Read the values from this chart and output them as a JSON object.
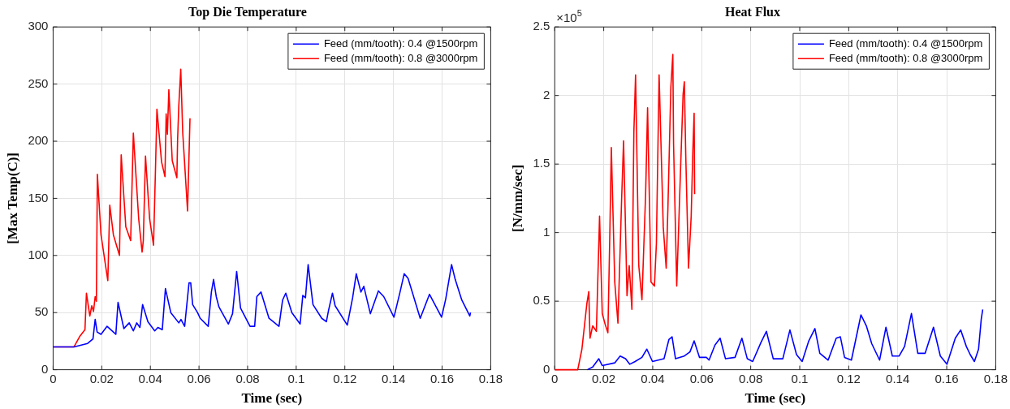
{
  "chart_data": [
    {
      "type": "line",
      "title": "Top Die Temperature",
      "xlabel": "Time (sec)",
      "ylabel": "[Max Temp(C)]",
      "xlim": [
        0,
        0.18
      ],
      "xticks": [
        0,
        0.02,
        0.04,
        0.06,
        0.08,
        0.1,
        0.12,
        0.14,
        0.16,
        0.18
      ],
      "ylim": [
        0,
        300
      ],
      "yticks": [
        0,
        50,
        100,
        150,
        200,
        250,
        300
      ],
      "grid": true,
      "legend": "top right",
      "series": [
        {
          "name": "Feed (mm/tooth): 0.4 @1500rpm",
          "color": "#0000ff",
          "x": [
            0,
            0.0086,
            0.0142,
            0.0164,
            0.0173,
            0.0181,
            0.0197,
            0.0222,
            0.0258,
            0.0267,
            0.0291,
            0.0313,
            0.033,
            0.0344,
            0.0357,
            0.0368,
            0.039,
            0.0418,
            0.0431,
            0.0449,
            0.0462,
            0.0484,
            0.0517,
            0.0526,
            0.0541,
            0.0559,
            0.0566,
            0.0574,
            0.0594,
            0.0605,
            0.0638,
            0.0651,
            0.066,
            0.0671,
            0.0682,
            0.0721,
            0.0738,
            0.0755,
            0.0771,
            0.081,
            0.0829,
            0.0838,
            0.0855,
            0.0888,
            0.0929,
            0.0944,
            0.0957,
            0.0982,
            0.1016,
            0.1027,
            0.1038,
            0.1049,
            0.1069,
            0.1105,
            0.1124,
            0.1133,
            0.1149,
            0.116,
            0.121,
            0.1232,
            0.1247,
            0.1266,
            0.1278,
            0.1305,
            0.1338,
            0.136,
            0.1402,
            0.1427,
            0.1444,
            0.146,
            0.151,
            0.1548,
            0.1598,
            0.1615,
            0.1639,
            0.1654,
            0.1681,
            0.1714,
            0.1717
          ],
          "values": [
            20,
            20,
            23,
            27,
            44,
            33,
            31,
            38,
            31,
            59,
            36,
            41,
            34,
            41,
            37,
            57,
            42,
            34,
            37,
            35,
            71,
            50,
            41,
            44,
            38,
            76,
            76,
            57,
            50,
            45,
            38,
            68,
            79,
            64,
            55,
            40,
            49,
            86,
            54,
            38,
            38,
            64,
            68,
            45,
            38,
            61,
            67,
            50,
            40,
            65,
            63,
            92,
            57,
            45,
            42,
            52,
            67,
            56,
            39,
            63,
            84,
            68,
            73,
            49,
            69,
            64,
            46,
            68,
            84,
            80,
            45,
            66,
            46,
            62,
            92,
            79,
            61,
            47,
            50
          ]
        },
        {
          "name": "Feed (mm/tooth): 0.8 @3000rpm",
          "color": "#ff0000",
          "x": [
            0,
            0.0086,
            0.0109,
            0.0131,
            0.0137,
            0.0151,
            0.0159,
            0.0166,
            0.0173,
            0.0178,
            0.0182,
            0.0197,
            0.0225,
            0.0233,
            0.0248,
            0.0273,
            0.028,
            0.0299,
            0.0319,
            0.033,
            0.0352,
            0.0366,
            0.0371,
            0.038,
            0.0397,
            0.0413,
            0.0421,
            0.0427,
            0.0446,
            0.046,
            0.0465,
            0.047,
            0.0476,
            0.049,
            0.0509,
            0.0512,
            0.0517,
            0.0525,
            0.0533,
            0.0553,
            0.0563
          ],
          "values": [
            20,
            20,
            29,
            35,
            67,
            47,
            56,
            51,
            64,
            60,
            171,
            118,
            78,
            144,
            118,
            100,
            188,
            125,
            113,
            207,
            132,
            103,
            113,
            187,
            132,
            109,
            175,
            228,
            182,
            169,
            224,
            206,
            245,
            183,
            168,
            201,
            231,
            263,
            208,
            139,
            220
          ]
        }
      ]
    },
    {
      "type": "line",
      "title": "Heat Flux",
      "xlabel": "Time (sec)",
      "ylabel": "[N/mm/sec]",
      "annotations": [
        "×10$^{5}$"
      ],
      "xlim": [
        0,
        0.18
      ],
      "xticks": [
        0,
        0.02,
        0.04,
        0.06,
        0.08,
        0.1,
        0.12,
        0.14,
        0.16,
        0.18
      ],
      "ylim": [
        0,
        2.5
      ],
      "yticks": [
        0,
        0.5,
        1,
        1.5,
        2,
        2.5
      ],
      "grid": true,
      "legend": "top right",
      "series": [
        {
          "name": "Feed (mm/tooth): 0.4 @1500rpm",
          "color": "#0000ff",
          "x": [
            0.0133,
            0.0155,
            0.018,
            0.0194,
            0.0245,
            0.0267,
            0.0289,
            0.0306,
            0.0328,
            0.0356,
            0.0376,
            0.0399,
            0.0446,
            0.0466,
            0.0479,
            0.0493,
            0.0529,
            0.0552,
            0.0569,
            0.0591,
            0.0619,
            0.063,
            0.0654,
            0.0675,
            0.0697,
            0.0736,
            0.0764,
            0.0786,
            0.0808,
            0.0842,
            0.0864,
            0.0892,
            0.0931,
            0.096,
            0.0987,
            0.101,
            0.1037,
            0.1062,
            0.1082,
            0.1116,
            0.1149,
            0.1166,
            0.1183,
            0.1211,
            0.125,
            0.1272,
            0.1294,
            0.1326,
            0.1352,
            0.1378,
            0.1406,
            0.1428,
            0.1456,
            0.1482,
            0.1512,
            0.1546,
            0.1574,
            0.1601,
            0.1635,
            0.1657,
            0.168,
            0.1696,
            0.1713,
            0.173,
            0.1741,
            0.1747
          ],
          "values": [
            0,
            0.02,
            0.08,
            0.03,
            0.05,
            0.1,
            0.08,
            0.04,
            0.06,
            0.09,
            0.15,
            0.06,
            0.08,
            0.22,
            0.24,
            0.08,
            0.1,
            0.13,
            0.21,
            0.09,
            0.09,
            0.07,
            0.18,
            0.23,
            0.08,
            0.09,
            0.23,
            0.08,
            0.06,
            0.2,
            0.28,
            0.08,
            0.08,
            0.29,
            0.11,
            0.06,
            0.21,
            0.3,
            0.12,
            0.07,
            0.23,
            0.24,
            0.09,
            0.07,
            0.4,
            0.32,
            0.19,
            0.07,
            0.31,
            0.1,
            0.1,
            0.17,
            0.41,
            0.12,
            0.12,
            0.31,
            0.1,
            0.04,
            0.23,
            0.29,
            0.17,
            0.11,
            0.06,
            0.15,
            0.37,
            0.44
          ]
        },
        {
          "name": "Feed (mm/tooth): 0.8 @3000rpm",
          "color": "#ff0000",
          "x": [
            0,
            0.0094,
            0.0111,
            0.0131,
            0.0139,
            0.0144,
            0.0155,
            0.017,
            0.0183,
            0.0194,
            0.0206,
            0.0217,
            0.0225,
            0.0231,
            0.0245,
            0.0258,
            0.0273,
            0.0281,
            0.0295,
            0.0304,
            0.0315,
            0.0323,
            0.033,
            0.0343,
            0.0356,
            0.0371,
            0.0379,
            0.0393,
            0.0407,
            0.0415,
            0.0426,
            0.0443,
            0.0455,
            0.0462,
            0.0474,
            0.0482,
            0.0485,
            0.0498,
            0.0513,
            0.0524,
            0.0529,
            0.0535,
            0.0546,
            0.0557,
            0.0564,
            0.0569,
            0.0571
          ],
          "values": [
            0,
            0,
            0.15,
            0.48,
            0.57,
            0.23,
            0.32,
            0.28,
            1.12,
            0.41,
            0.33,
            0.27,
            1,
            1.62,
            0.64,
            0.34,
            1.24,
            1.67,
            0.54,
            0.76,
            0.44,
            1.73,
            2.15,
            0.76,
            0.51,
            1.28,
            1.91,
            0.64,
            0.61,
            0.92,
            2.15,
            1.04,
            0.74,
            1.18,
            2.06,
            2.3,
            1.65,
            0.61,
            1.43,
            2.01,
            2.1,
            1.55,
            0.74,
            1.12,
            1.61,
            1.87,
            1.28
          ]
        }
      ]
    }
  ]
}
